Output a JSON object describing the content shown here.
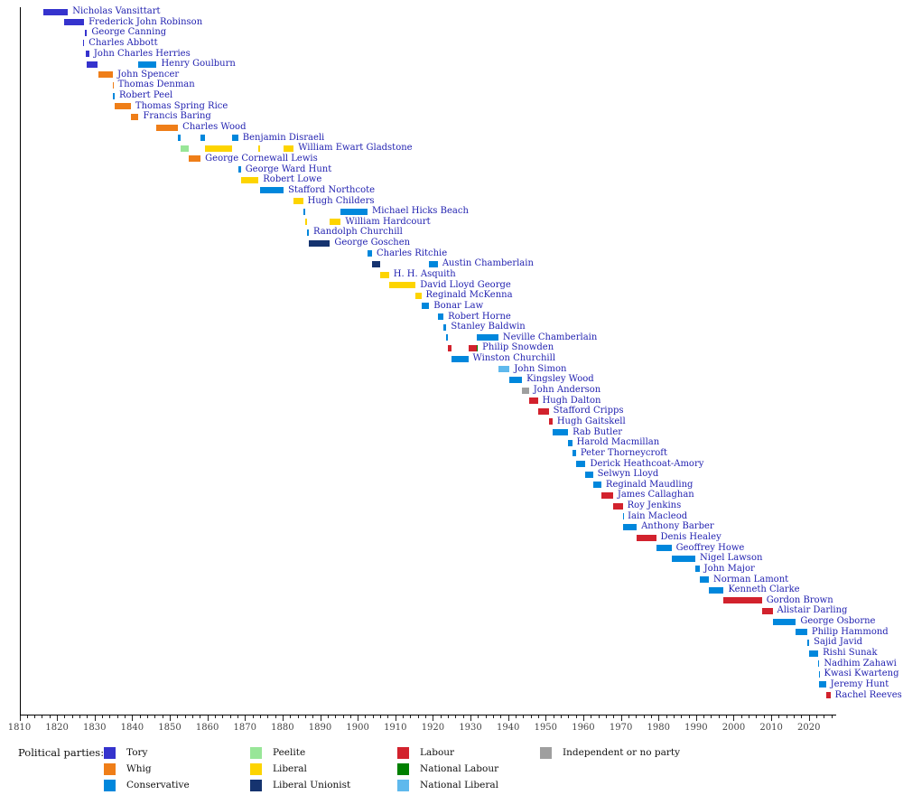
{
  "chart_data": {
    "type": "timeline",
    "title": "",
    "description": "Gantt-style timeline of UK Chancellors of the Exchequer by political party",
    "x_axis": {
      "min": 1810,
      "max": 2027,
      "major_tick_step": 10,
      "minor_tick_step": 2,
      "tick_labels": [
        "1810",
        "1820",
        "1830",
        "1840",
        "1850",
        "1860",
        "1870",
        "1880",
        "1890",
        "1900",
        "1910",
        "1920",
        "1930",
        "1940",
        "1950",
        "1960",
        "1970",
        "1980",
        "1990",
        "2000",
        "2010",
        "2020"
      ]
    },
    "parties": {
      "Tory": "#3533cd",
      "Whig": "#ef7e18",
      "Conservative": "#0087dc",
      "Peelite": "#98e698",
      "Liberal": "#fdd400",
      "Liberal Unionist": "#15336f",
      "Labour": "#d2222d",
      "National Labour": "#008000",
      "National Liberal": "#5fb9ed",
      "Independent or no party": "#9f9f9f"
    },
    "legend": {
      "heading": "Political parties:",
      "columns": [
        [
          "Tory",
          "Whig",
          "Conservative"
        ],
        [
          "Peelite",
          "Liberal",
          "Liberal Unionist"
        ],
        [
          "Labour",
          "National Labour",
          "National Liberal"
        ],
        [
          "Independent or no party"
        ]
      ]
    },
    "chancellors": [
      {
        "name": "Nicholas Vansittart",
        "terms": [
          {
            "party": "Tory",
            "start": 1816.4,
            "end": 1822.9
          }
        ]
      },
      {
        "name": "Frederick John Robinson",
        "terms": [
          {
            "party": "Tory",
            "start": 1821.9,
            "end": 1827.2
          }
        ]
      },
      {
        "name": "George Canning",
        "terms": [
          {
            "party": "Tory",
            "start": 1827.4,
            "end": 1828.0
          }
        ]
      },
      {
        "name": "Charles Abbott",
        "terms": [
          {
            "party": "Tory",
            "start": 1827.0,
            "end": 1827.25
          }
        ]
      },
      {
        "name": "John Charles Herries",
        "terms": [
          {
            "party": "Tory",
            "start": 1827.7,
            "end": 1828.6
          }
        ]
      },
      {
        "name": "Henry Goulburn",
        "terms": [
          {
            "party": "Tory",
            "start": 1827.8,
            "end": 1830.9
          },
          {
            "party": "Conservative",
            "start": 1841.7,
            "end": 1846.5
          }
        ]
      },
      {
        "name": "John Spencer",
        "terms": [
          {
            "party": "Whig",
            "start": 1830.9,
            "end": 1834.9
          }
        ]
      },
      {
        "name": "Thomas Denman",
        "terms": [
          {
            "party": "Whig",
            "start": 1834.85,
            "end": 1835.0
          }
        ]
      },
      {
        "name": "Robert Peel",
        "terms": [
          {
            "party": "Conservative",
            "start": 1834.95,
            "end": 1835.35
          }
        ]
      },
      {
        "name": "Thomas Spring Rice",
        "terms": [
          {
            "party": "Whig",
            "start": 1835.35,
            "end": 1839.65
          }
        ]
      },
      {
        "name": "Francis Baring",
        "terms": [
          {
            "party": "Whig",
            "start": 1839.65,
            "end": 1841.7
          }
        ]
      },
      {
        "name": "Charles Wood",
        "terms": [
          {
            "party": "Whig",
            "start": 1846.5,
            "end": 1852.2
          }
        ]
      },
      {
        "name": "Benjamin Disraeli",
        "terms": [
          {
            "party": "Conservative",
            "start": 1852.2,
            "end": 1852.95
          },
          {
            "party": "Conservative",
            "start": 1858.2,
            "end": 1859.45
          },
          {
            "party": "Conservative",
            "start": 1866.5,
            "end": 1868.2
          }
        ]
      },
      {
        "name": "William Ewart Gladstone",
        "terms": [
          {
            "party": "Peelite",
            "start": 1852.95,
            "end": 1855.15
          },
          {
            "party": "Liberal",
            "start": 1859.45,
            "end": 1866.5
          },
          {
            "party": "Liberal",
            "start": 1873.6,
            "end": 1874.1
          },
          {
            "party": "Liberal",
            "start": 1880.3,
            "end": 1882.95
          }
        ]
      },
      {
        "name": "George Cornewall Lewis",
        "terms": [
          {
            "party": "Whig",
            "start": 1855.15,
            "end": 1858.2
          }
        ]
      },
      {
        "name": "George Ward Hunt",
        "terms": [
          {
            "party": "Conservative",
            "start": 1868.2,
            "end": 1868.9
          }
        ]
      },
      {
        "name": "Robert Lowe",
        "terms": [
          {
            "party": "Liberal",
            "start": 1868.9,
            "end": 1873.6
          }
        ]
      },
      {
        "name": "Stafford Northcote",
        "terms": [
          {
            "party": "Conservative",
            "start": 1874.1,
            "end": 1880.3
          }
        ]
      },
      {
        "name": "Hugh Childers",
        "terms": [
          {
            "party": "Liberal",
            "start": 1882.95,
            "end": 1885.45
          }
        ]
      },
      {
        "name": "Michael Hicks Beach",
        "terms": [
          {
            "party": "Conservative",
            "start": 1885.45,
            "end": 1886.1
          },
          {
            "party": "Conservative",
            "start": 1895.5,
            "end": 1902.6
          }
        ]
      },
      {
        "name": "William Hardcourt",
        "terms": [
          {
            "party": "Liberal",
            "start": 1886.1,
            "end": 1886.6
          },
          {
            "party": "Liberal",
            "start": 1892.6,
            "end": 1895.5
          }
        ]
      },
      {
        "name": "Randolph Churchill",
        "terms": [
          {
            "party": "Conservative",
            "start": 1886.6,
            "end": 1887.0
          }
        ]
      },
      {
        "name": "George Goschen",
        "terms": [
          {
            "party": "Liberal Unionist",
            "start": 1887.0,
            "end": 1892.6
          }
        ]
      },
      {
        "name": "Charles Ritchie",
        "terms": [
          {
            "party": "Conservative",
            "start": 1902.6,
            "end": 1903.8
          }
        ]
      },
      {
        "name": "Austin Chamberlain",
        "terms": [
          {
            "party": "Liberal Unionist",
            "start": 1903.8,
            "end": 1905.9
          },
          {
            "party": "Conservative",
            "start": 1919.0,
            "end": 1921.3
          }
        ]
      },
      {
        "name": "H. H. Asquith",
        "terms": [
          {
            "party": "Liberal",
            "start": 1905.9,
            "end": 1908.3
          }
        ]
      },
      {
        "name": "David Lloyd George",
        "terms": [
          {
            "party": "Liberal",
            "start": 1908.3,
            "end": 1915.4
          }
        ]
      },
      {
        "name": "Reginald McKenna",
        "terms": [
          {
            "party": "Liberal",
            "start": 1915.4,
            "end": 1916.9
          }
        ]
      },
      {
        "name": "Bonar Law",
        "terms": [
          {
            "party": "Conservative",
            "start": 1916.9,
            "end": 1919.0
          }
        ]
      },
      {
        "name": "Robert Horne",
        "terms": [
          {
            "party": "Conservative",
            "start": 1921.3,
            "end": 1922.8
          }
        ]
      },
      {
        "name": "Stanley Baldwin",
        "terms": [
          {
            "party": "Conservative",
            "start": 1922.8,
            "end": 1923.6
          }
        ]
      },
      {
        "name": "Neville Chamberlain",
        "terms": [
          {
            "party": "Conservative",
            "start": 1923.6,
            "end": 1924.1
          },
          {
            "party": "Conservative",
            "start": 1931.7,
            "end": 1937.4
          }
        ]
      },
      {
        "name": "Philip Snowden",
        "terms": [
          {
            "party": "Labour",
            "start": 1924.1,
            "end": 1924.9
          },
          {
            "party": "Labour",
            "start": 1929.4,
            "end": 1931.6
          },
          {
            "party": "National Labour",
            "start": 1931.6,
            "end": 1931.95
          }
        ]
      },
      {
        "name": "Winston Churchill",
        "terms": [
          {
            "party": "Conservative",
            "start": 1924.9,
            "end": 1929.4
          }
        ]
      },
      {
        "name": "John Simon",
        "terms": [
          {
            "party": "National Liberal",
            "start": 1937.4,
            "end": 1940.4
          }
        ]
      },
      {
        "name": "Kingsley Wood",
        "terms": [
          {
            "party": "Conservative",
            "start": 1940.4,
            "end": 1943.7
          }
        ]
      },
      {
        "name": "John Anderson",
        "terms": [
          {
            "party": "Independent or no party",
            "start": 1943.7,
            "end": 1945.55
          }
        ]
      },
      {
        "name": "Hugh Dalton",
        "terms": [
          {
            "party": "Labour",
            "start": 1945.55,
            "end": 1947.9
          }
        ]
      },
      {
        "name": "Stafford Cripps",
        "terms": [
          {
            "party": "Labour",
            "start": 1947.9,
            "end": 1950.8
          }
        ]
      },
      {
        "name": "Hugh Gaitskell",
        "terms": [
          {
            "party": "Labour",
            "start": 1950.8,
            "end": 1951.8
          }
        ]
      },
      {
        "name": "Rab Butler",
        "terms": [
          {
            "party": "Conservative",
            "start": 1951.8,
            "end": 1955.95
          }
        ]
      },
      {
        "name": "Harold Macmillan",
        "terms": [
          {
            "party": "Conservative",
            "start": 1955.95,
            "end": 1957.05
          }
        ]
      },
      {
        "name": "Peter Thorneycroft",
        "terms": [
          {
            "party": "Conservative",
            "start": 1957.05,
            "end": 1958.05
          }
        ]
      },
      {
        "name": "Derick Heathcoat-Amory",
        "terms": [
          {
            "party": "Conservative",
            "start": 1958.05,
            "end": 1960.6
          }
        ]
      },
      {
        "name": "Selwyn Lloyd",
        "terms": [
          {
            "party": "Conservative",
            "start": 1960.6,
            "end": 1962.55
          }
        ]
      },
      {
        "name": "Reginald Maudling",
        "terms": [
          {
            "party": "Conservative",
            "start": 1962.55,
            "end": 1964.8
          }
        ]
      },
      {
        "name": "James Callaghan",
        "terms": [
          {
            "party": "Labour",
            "start": 1964.8,
            "end": 1967.9
          }
        ]
      },
      {
        "name": "Roy Jenkins",
        "terms": [
          {
            "party": "Labour",
            "start": 1967.9,
            "end": 1970.5
          }
        ]
      },
      {
        "name": "Iain Macleod",
        "terms": [
          {
            "party": "Conservative",
            "start": 1970.5,
            "end": 1970.6
          }
        ]
      },
      {
        "name": "Anthony Barber",
        "terms": [
          {
            "party": "Conservative",
            "start": 1970.6,
            "end": 1974.2
          }
        ]
      },
      {
        "name": "Denis Healey",
        "terms": [
          {
            "party": "Labour",
            "start": 1974.2,
            "end": 1979.35
          }
        ]
      },
      {
        "name": "Geoffrey Howe",
        "terms": [
          {
            "party": "Conservative",
            "start": 1979.35,
            "end": 1983.45
          }
        ]
      },
      {
        "name": "Nigel Lawson",
        "terms": [
          {
            "party": "Conservative",
            "start": 1983.45,
            "end": 1989.8
          }
        ]
      },
      {
        "name": "John Major",
        "terms": [
          {
            "party": "Conservative",
            "start": 1989.8,
            "end": 1990.9
          }
        ]
      },
      {
        "name": "Norman Lamont",
        "terms": [
          {
            "party": "Conservative",
            "start": 1990.9,
            "end": 1993.4
          }
        ]
      },
      {
        "name": "Kenneth Clarke",
        "terms": [
          {
            "party": "Conservative",
            "start": 1993.4,
            "end": 1997.35
          }
        ]
      },
      {
        "name": "Gordon Brown",
        "terms": [
          {
            "party": "Labour",
            "start": 1997.35,
            "end": 2007.5
          }
        ]
      },
      {
        "name": "Alistair Darling",
        "terms": [
          {
            "party": "Labour",
            "start": 2007.5,
            "end": 2010.35
          }
        ]
      },
      {
        "name": "George Osborne",
        "terms": [
          {
            "party": "Conservative",
            "start": 2010.35,
            "end": 2016.55
          }
        ]
      },
      {
        "name": "Philip Hammond",
        "terms": [
          {
            "party": "Conservative",
            "start": 2016.55,
            "end": 2019.55
          }
        ]
      },
      {
        "name": "Sajid Javid",
        "terms": [
          {
            "party": "Conservative",
            "start": 2019.55,
            "end": 2020.1
          }
        ]
      },
      {
        "name": "Rishi Sunak",
        "terms": [
          {
            "party": "Conservative",
            "start": 2020.1,
            "end": 2022.5
          }
        ]
      },
      {
        "name": "Nadhim Zahawi",
        "terms": [
          {
            "party": "Conservative",
            "start": 2022.5,
            "end": 2022.8
          }
        ]
      },
      {
        "name": "Kwasi Kwarteng",
        "terms": [
          {
            "party": "Conservative",
            "start": 2022.7,
            "end": 2022.82
          }
        ]
      },
      {
        "name": "Jeremy Hunt",
        "terms": [
          {
            "party": "Conservative",
            "start": 2022.82,
            "end": 2024.55
          }
        ]
      },
      {
        "name": "Rachel Reeves",
        "terms": [
          {
            "party": "Labour",
            "start": 2024.55,
            "end": 2025.75
          }
        ]
      }
    ]
  }
}
